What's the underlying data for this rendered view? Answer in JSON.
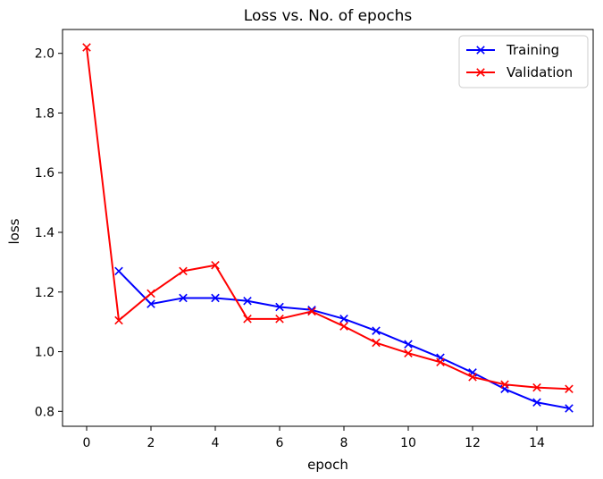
{
  "chart_data": {
    "type": "line",
    "title": "Loss vs. No. of epochs",
    "xlabel": "epoch",
    "ylabel": "loss",
    "xlim": [
      -0.75,
      15.75
    ],
    "ylim": [
      0.75,
      2.08
    ],
    "xticks": [
      0,
      2,
      4,
      6,
      8,
      10,
      12,
      14
    ],
    "yticks": [
      0.8,
      1.0,
      1.2,
      1.4,
      1.6,
      1.8,
      2.0
    ],
    "xtick_labels": [
      "0",
      "2",
      "4",
      "6",
      "8",
      "10",
      "12",
      "14"
    ],
    "ytick_labels": [
      "0.8",
      "1.0",
      "1.2",
      "1.4",
      "1.6",
      "1.8",
      "2.0"
    ],
    "grid": false,
    "legend_position": "top-right",
    "marker": "x",
    "series": [
      {
        "name": "Training",
        "color": "#0000ff",
        "x": [
          1,
          2,
          3,
          4,
          5,
          6,
          7,
          8,
          9,
          10,
          11,
          12,
          13,
          14,
          15
        ],
        "values": [
          1.27,
          1.16,
          1.18,
          1.18,
          1.17,
          1.15,
          1.14,
          1.11,
          1.07,
          1.025,
          0.98,
          0.93,
          0.875,
          0.83,
          0.81
        ]
      },
      {
        "name": "Validation",
        "color": "#ff0000",
        "x": [
          0,
          1,
          2,
          3,
          4,
          5,
          6,
          7,
          8,
          9,
          10,
          11,
          12,
          13,
          14,
          15
        ],
        "values": [
          2.02,
          1.105,
          1.195,
          1.27,
          1.29,
          1.11,
          1.11,
          1.135,
          1.085,
          1.03,
          0.995,
          0.965,
          0.915,
          0.89,
          0.88,
          0.875
        ]
      }
    ]
  }
}
